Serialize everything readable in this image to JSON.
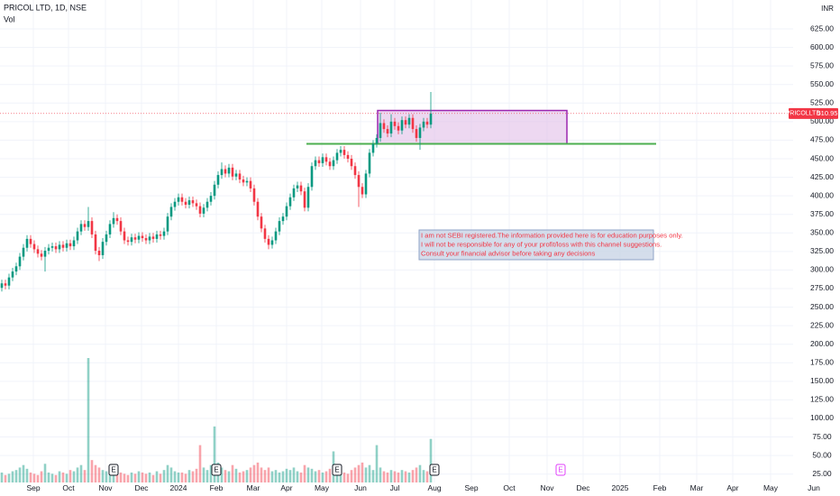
{
  "chart_data": {
    "type": "candlestick",
    "title": "PRICOL LTD, 1D, NSE",
    "volume_label": "Vol",
    "currency": "INR",
    "symbol": "PRICOLLTD",
    "up_color": "#089981",
    "down_color": "#f23645",
    "grid": true,
    "xlim": [
      -0.5,
      232.5
    ],
    "ylim": [
      13.7,
      663.9
    ],
    "xticks": [
      {
        "value": 8.75,
        "label": "Sep"
      },
      {
        "value": 18.5,
        "label": "Oct"
      },
      {
        "value": 28.75,
        "label": "Nov"
      },
      {
        "value": 38.75,
        "label": "Dec"
      },
      {
        "value": 49,
        "label": "2024"
      },
      {
        "value": 59.5,
        "label": "Feb"
      },
      {
        "value": 69.75,
        "label": "Mar"
      },
      {
        "value": 79,
        "label": "Apr"
      },
      {
        "value": 88.75,
        "label": "May"
      },
      {
        "value": 99.5,
        "label": "Jun"
      },
      {
        "value": 109,
        "label": "Jul"
      },
      {
        "value": 120,
        "label": "Aug"
      },
      {
        "value": 130.25,
        "label": "Sep"
      },
      {
        "value": 140.75,
        "label": "Oct"
      },
      {
        "value": 151.25,
        "label": "Nov"
      },
      {
        "value": 161.25,
        "label": "Dec"
      },
      {
        "value": 171.5,
        "label": "2025"
      },
      {
        "value": 182.5,
        "label": "Feb"
      },
      {
        "value": 192.75,
        "label": "Mar"
      },
      {
        "value": 202.75,
        "label": "Apr"
      },
      {
        "value": 213.25,
        "label": "May"
      },
      {
        "value": 225.25,
        "label": "Jun"
      }
    ],
    "yticks": [
      {
        "value": 25,
        "label": "25.00"
      },
      {
        "value": 50,
        "label": "50.00"
      },
      {
        "value": 75,
        "label": "75.00"
      },
      {
        "value": 100,
        "label": "100.00"
      },
      {
        "value": 125,
        "label": "125.00"
      },
      {
        "value": 150,
        "label": "150.00"
      },
      {
        "value": 175,
        "label": "175.00"
      },
      {
        "value": 200,
        "label": "200.00"
      },
      {
        "value": 225,
        "label": "225.00"
      },
      {
        "value": 250,
        "label": "250.00"
      },
      {
        "value": 275,
        "label": "275.00"
      },
      {
        "value": 300,
        "label": "300.00"
      },
      {
        "value": 325,
        "label": "325.00"
      },
      {
        "value": 350,
        "label": "350.00"
      },
      {
        "value": 375,
        "label": "375.00"
      },
      {
        "value": 400,
        "label": "400.00"
      },
      {
        "value": 425,
        "label": "425.00"
      },
      {
        "value": 450,
        "label": "450.00"
      },
      {
        "value": 475,
        "label": "475.00"
      },
      {
        "value": 500,
        "label": "500.00"
      },
      {
        "value": 525,
        "label": "525.00"
      },
      {
        "value": 550,
        "label": "550.00"
      },
      {
        "value": 575,
        "label": "575.00"
      },
      {
        "value": 600,
        "label": "600.00"
      },
      {
        "value": 625,
        "label": "625.00"
      }
    ],
    "open": [
      276,
      282,
      279,
      290,
      298,
      305,
      318,
      330,
      342,
      335,
      328,
      322,
      318,
      326,
      330,
      332,
      328,
      334,
      330,
      336,
      332,
      340,
      352,
      362,
      358,
      366,
      348,
      326,
      320,
      338,
      348,
      362,
      370,
      366,
      352,
      340,
      338,
      344,
      341,
      346,
      343,
      340,
      345,
      342,
      348,
      346,
      352,
      372,
      385,
      392,
      398,
      392,
      388,
      394,
      390,
      386,
      376,
      384,
      392,
      400,
      415,
      428,
      436,
      430,
      438,
      426,
      430,
      422,
      418,
      420,
      410,
      392,
      372,
      356,
      342,
      334,
      340,
      352,
      366,
      372,
      386,
      398,
      410,
      414,
      406,
      384,
      412,
      440,
      448,
      444,
      452,
      446,
      440,
      448,
      458,
      462,
      455,
      450,
      440,
      428,
      412,
      402,
      430,
      458,
      470,
      478,
      498,
      490,
      484,
      500,
      494,
      488,
      502,
      496,
      505,
      490,
      478,
      492,
      500,
      496
    ],
    "high": [
      287,
      287,
      295,
      303,
      310,
      323,
      335,
      347,
      347,
      340,
      333,
      327,
      331,
      335,
      337,
      337,
      339,
      339,
      341,
      341,
      345,
      357,
      367,
      367,
      385,
      371,
      353,
      331,
      343,
      353,
      367,
      378,
      375,
      371,
      357,
      345,
      349,
      349,
      351,
      351,
      348,
      350,
      350,
      353,
      353,
      357,
      377,
      390,
      397,
      403,
      403,
      397,
      399,
      399,
      395,
      391,
      389,
      397,
      405,
      420,
      433,
      445,
      441,
      443,
      443,
      435,
      435,
      427,
      425,
      425,
      415,
      397,
      377,
      361,
      347,
      345,
      357,
      371,
      377,
      391,
      403,
      415,
      419,
      419,
      411,
      417,
      445,
      453,
      453,
      457,
      457,
      451,
      453,
      463,
      467,
      467,
      460,
      455,
      445,
      433,
      417,
      435,
      463,
      475,
      483,
      512,
      503,
      495,
      510,
      505,
      499,
      507,
      507,
      510,
      510,
      495,
      497,
      505,
      505,
      540
    ],
    "low": [
      271,
      274,
      274,
      285,
      293,
      300,
      313,
      325,
      330,
      323,
      317,
      313,
      298,
      321,
      325,
      323,
      323,
      325,
      325,
      327,
      327,
      335,
      347,
      353,
      353,
      343,
      321,
      312,
      315,
      333,
      343,
      357,
      361,
      347,
      335,
      333,
      333,
      336,
      336,
      338,
      335,
      335,
      337,
      337,
      341,
      341,
      347,
      367,
      380,
      387,
      387,
      383,
      383,
      385,
      381,
      371,
      371,
      379,
      387,
      395,
      410,
      423,
      425,
      425,
      421,
      421,
      417,
      413,
      413,
      405,
      387,
      367,
      351,
      337,
      328,
      329,
      335,
      347,
      361,
      367,
      381,
      393,
      405,
      401,
      379,
      379,
      407,
      435,
      439,
      439,
      441,
      435,
      435,
      443,
      453,
      450,
      445,
      435,
      423,
      385,
      397,
      397,
      425,
      453,
      465,
      473,
      485,
      479,
      479,
      489,
      483,
      483,
      491,
      491,
      485,
      473,
      462,
      487,
      491,
      491
    ],
    "close": [
      282,
      279,
      290,
      298,
      305,
      318,
      330,
      342,
      335,
      328,
      322,
      318,
      326,
      330,
      332,
      328,
      334,
      330,
      336,
      332,
      340,
      352,
      362,
      358,
      366,
      348,
      326,
      320,
      338,
      348,
      362,
      370,
      366,
      352,
      340,
      338,
      344,
      341,
      346,
      343,
      340,
      345,
      342,
      348,
      346,
      352,
      372,
      385,
      392,
      398,
      392,
      388,
      394,
      390,
      386,
      376,
      384,
      392,
      400,
      415,
      428,
      436,
      430,
      438,
      426,
      430,
      422,
      418,
      420,
      410,
      392,
      372,
      356,
      342,
      334,
      340,
      352,
      366,
      372,
      386,
      398,
      410,
      414,
      406,
      384,
      412,
      440,
      448,
      444,
      452,
      446,
      440,
      448,
      458,
      462,
      455,
      450,
      440,
      428,
      412,
      402,
      430,
      458,
      470,
      478,
      498,
      490,
      484,
      500,
      494,
      488,
      502,
      496,
      505,
      490,
      478,
      492,
      500,
      496,
      510.95
    ],
    "volume": [
      8,
      6,
      7,
      9,
      10,
      12,
      14,
      11,
      8,
      7,
      6,
      9,
      15,
      8,
      7,
      6,
      9,
      8,
      7,
      10,
      9,
      12,
      14,
      10,
      100,
      18,
      14,
      12,
      10,
      9,
      8,
      9,
      11,
      8,
      7,
      6,
      8,
      7,
      9,
      8,
      7,
      8,
      6,
      9,
      7,
      10,
      14,
      12,
      9,
      8,
      8,
      7,
      10,
      9,
      11,
      30,
      12,
      10,
      14,
      45,
      16,
      12,
      10,
      9,
      14,
      11,
      8,
      9,
      10,
      12,
      14,
      16,
      12,
      10,
      12,
      9,
      10,
      8,
      9,
      11,
      10,
      12,
      9,
      8,
      14,
      12,
      11,
      9,
      10,
      8,
      9,
      11,
      25,
      10,
      9,
      8,
      7,
      10,
      12,
      14,
      16,
      12,
      14,
      10,
      30,
      12,
      9,
      8,
      10,
      9,
      8,
      10,
      9,
      8,
      10,
      12,
      14,
      10,
      9,
      35
    ],
    "zone": {
      "x": [
        104.25,
        156.75
      ],
      "y": [
        470,
        515
      ],
      "color": "#e1bee7",
      "border": "#9c27b0"
    },
    "support": {
      "x": [
        84.5,
        181.5
      ],
      "y": 470,
      "color": "#4caf50"
    },
    "events": [
      {
        "x": 31,
        "label": "E",
        "color": "#131722"
      },
      {
        "x": 59.5,
        "label": "E",
        "color": "#131722"
      },
      {
        "x": 93,
        "label": "E",
        "color": "#131722"
      },
      {
        "x": 120,
        "label": "E",
        "color": "#131722"
      },
      {
        "x": 155,
        "label": "E",
        "color": "#e040fb"
      }
    ],
    "annotation": [
      "I am not SEBI registered.The information provided here is for education purposes only.",
      "I will not be responsible for any of your profit/loss with this channel suggestions.",
      "Consult your financial advisor before taking any decisions"
    ]
  }
}
